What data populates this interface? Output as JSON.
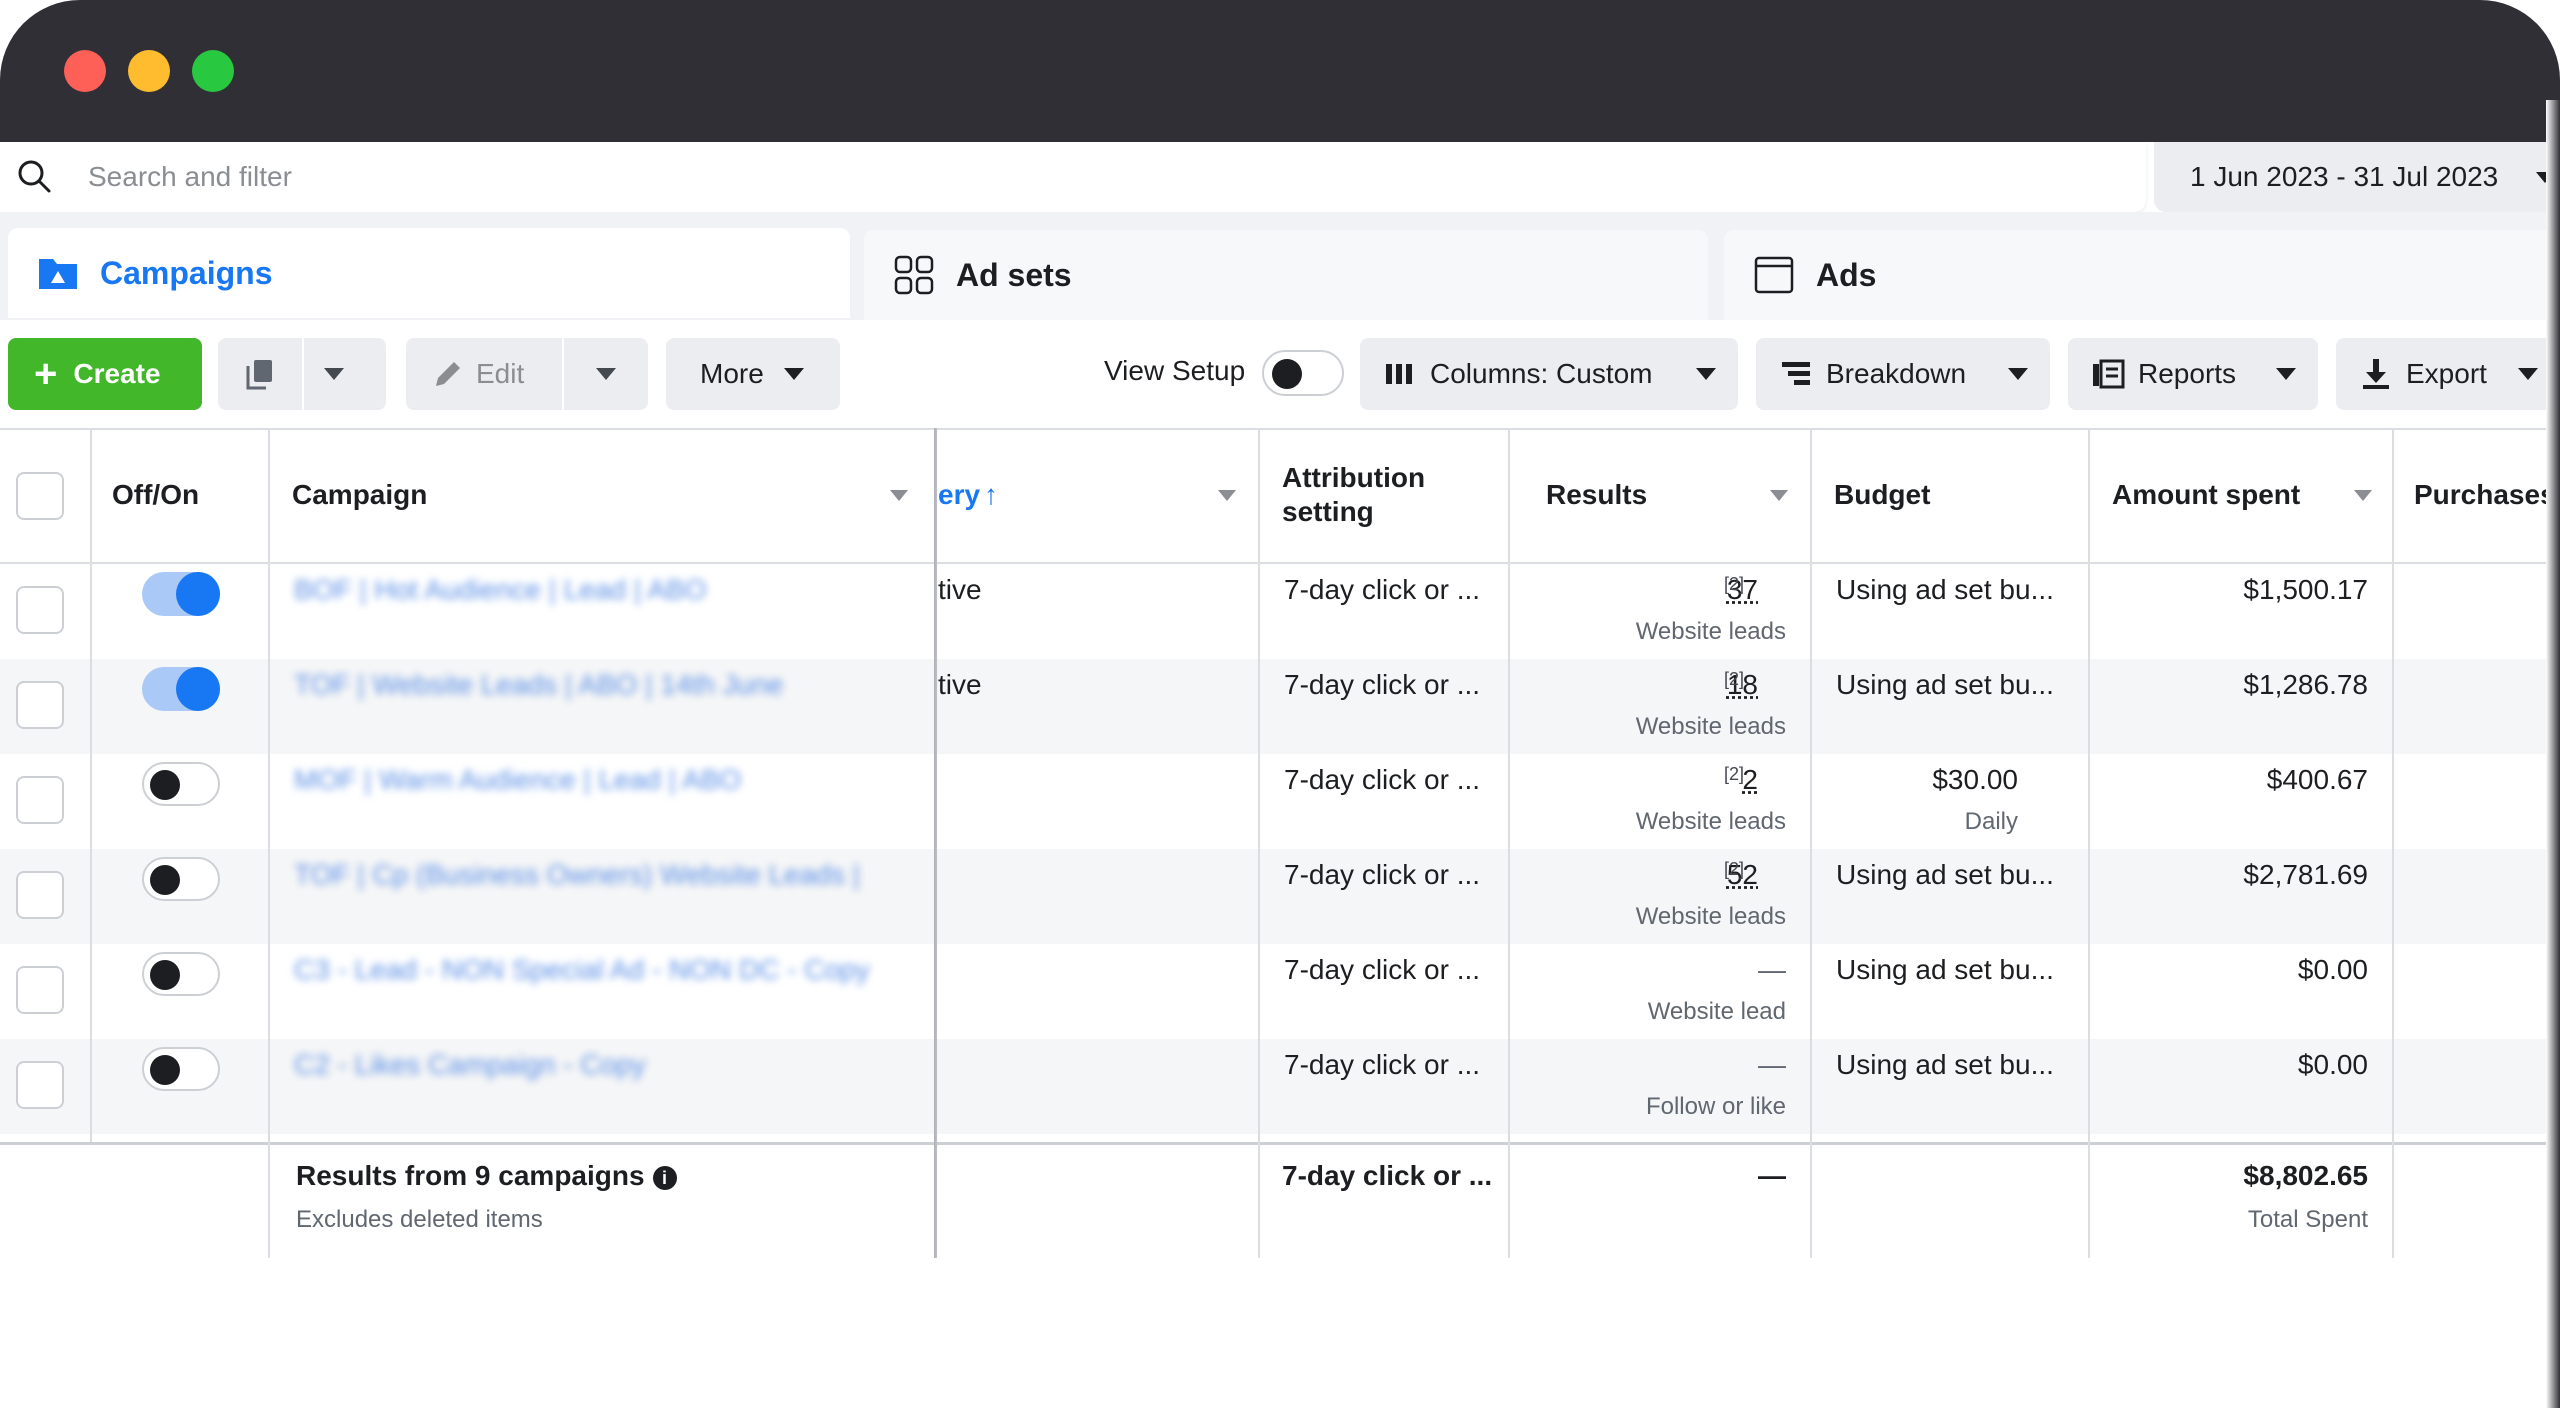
{
  "window": {
    "traffic_lights": [
      "close",
      "minimize",
      "maximize"
    ]
  },
  "search": {
    "placeholder": "Search and filter"
  },
  "date_range": {
    "label": "1 Jun 2023 - 31 Jul 2023"
  },
  "tabs": [
    {
      "label": "Campaigns",
      "icon": "folder-icon",
      "active": true
    },
    {
      "label": "Ad sets",
      "icon": "grid-icon",
      "active": false
    },
    {
      "label": "Ads",
      "icon": "ad-frame-icon",
      "active": false
    }
  ],
  "toolbar": {
    "create_label": "Create",
    "edit_label": "Edit",
    "more_label": "More",
    "view_setup_label": "View Setup",
    "columns_label": "Columns: Custom",
    "breakdown_label": "Breakdown",
    "reports_label": "Reports",
    "export_label": "Export"
  },
  "table": {
    "headers": {
      "off_on": "Off/On",
      "campaign": "Campaign",
      "delivery": "ery",
      "attribution_line1": "Attribution",
      "attribution_line2": "setting",
      "results": "Results",
      "budget": "Budget",
      "amount_spent": "Amount spent",
      "purchases": "Purchases"
    },
    "rows": [
      {
        "on": true,
        "campaign": "BOF | Hot Audience | Lead | ABO",
        "delivery": "tive",
        "attribution": "7-day click or ...",
        "result": "37",
        "result_note": "[2]",
        "result_type": "Website leads",
        "budget": "Using ad set bu...",
        "budget_sub": "",
        "spent": "$1,500.17"
      },
      {
        "on": true,
        "campaign": "TOF | Website Leads | ABO | 14th June",
        "delivery": "tive",
        "attribution": "7-day click or ...",
        "result": "18",
        "result_note": "[2]",
        "result_type": "Website leads",
        "budget": "Using ad set bu...",
        "budget_sub": "",
        "spent": "$1,286.78"
      },
      {
        "on": false,
        "campaign": "MOF | Warm Audience | Lead | ABO",
        "delivery": "",
        "attribution": "7-day click or ...",
        "result": "2",
        "result_note": "[2]",
        "result_type": "Website leads",
        "budget": "$30.00",
        "budget_sub": "Daily",
        "spent": "$400.67"
      },
      {
        "on": false,
        "campaign": "TOF | Cp (Business Owners) Website Leads |",
        "delivery": "",
        "attribution": "7-day click or ...",
        "result": "52",
        "result_note": "[2]",
        "result_type": "Website leads",
        "budget": "Using ad set bu...",
        "budget_sub": "",
        "spent": "$2,781.69"
      },
      {
        "on": false,
        "campaign": "C3 - Lead - NON Special Ad - NON DC - Copy",
        "delivery": "",
        "attribution": "7-day click or ...",
        "result": "—",
        "result_note": "",
        "result_type": "Website lead",
        "budget": "Using ad set bu...",
        "budget_sub": "",
        "spent": "$0.00"
      },
      {
        "on": false,
        "campaign": "C2 - Likes Campaign - Copy",
        "delivery": "",
        "attribution": "7-day click or ...",
        "result": "—",
        "result_note": "",
        "result_type": "Follow or like",
        "budget": "Using ad set bu...",
        "budget_sub": "",
        "spent": "$0.00"
      }
    ],
    "footer": {
      "title": "Results from 9 campaigns",
      "subtitle": "Excludes deleted items",
      "attribution": "7-day click or ...",
      "results": "—",
      "spent": "$8,802.65",
      "spent_label": "Total Spent"
    }
  },
  "colors": {
    "accent": "#1877f2",
    "create": "#42b72a",
    "titlebar": "#2f2f35"
  }
}
